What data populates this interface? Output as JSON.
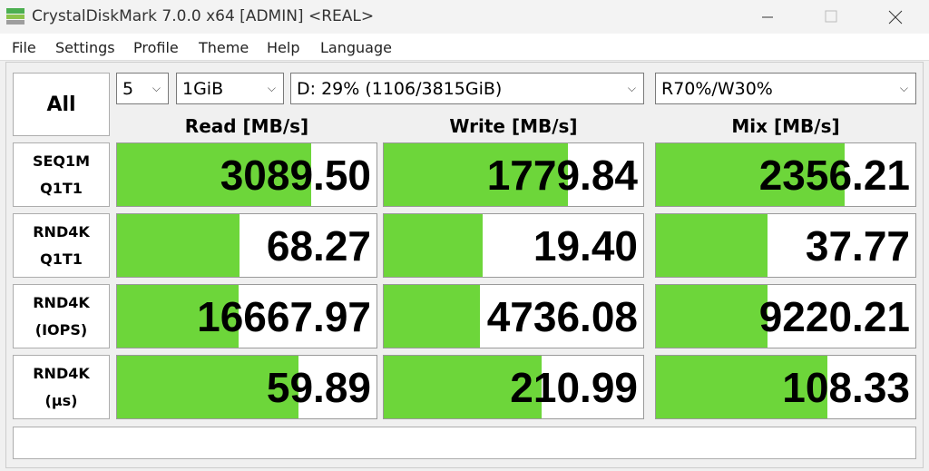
{
  "window": {
    "title": "CrystalDiskMark 7.0.0 x64 [ADMIN] <REAL>"
  },
  "menu": [
    "File",
    "Settings",
    "Profile",
    "Theme",
    "Help",
    "Language"
  ],
  "controls": {
    "all_button": "All",
    "count": "5",
    "size": "1GiB",
    "drive": "D: 29% (1106/3815GiB)",
    "mix": "R70%/W30%"
  },
  "columns": [
    "Read [MB/s]",
    "Write [MB/s]",
    "Mix [MB/s]"
  ],
  "rows": [
    {
      "label": [
        "SEQ1M",
        "Q1T1"
      ],
      "values": [
        "3089.50",
        "1779.84",
        "2356.21"
      ]
    },
    {
      "label": [
        "RND4K",
        "Q1T1"
      ],
      "values": [
        "68.27",
        "19.40",
        "37.77"
      ]
    },
    {
      "label": [
        "RND4K",
        "(IOPS)"
      ],
      "values": [
        "16667.97",
        "4736.08",
        "9220.21"
      ]
    },
    {
      "label": [
        "RND4K",
        "(μs)"
      ],
      "values": [
        "59.89",
        "210.99",
        "108.33"
      ]
    }
  ]
}
